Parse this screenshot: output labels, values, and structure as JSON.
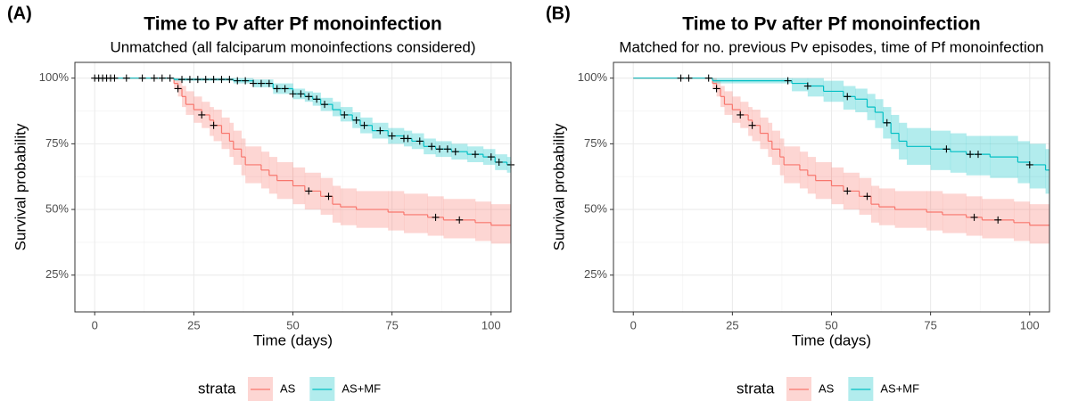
{
  "chart_data": [
    {
      "type": "survival",
      "panel_label": "(A)",
      "title": "Time to Pv after Pf monoinfection",
      "subtitle": "Unmatched (all falciparum monoinfections considered)",
      "x_label": "Time (days)",
      "y_label": "Survival probability",
      "xlim": [
        -5,
        105
      ],
      "ylim": [
        11,
        106
      ],
      "xticks": [
        0,
        25,
        50,
        75,
        100
      ],
      "yticks": [
        {
          "value": 25,
          "label": "25%"
        },
        {
          "value": 50,
          "label": "50%"
        },
        {
          "value": 75,
          "label": "75%"
        },
        {
          "value": 100,
          "label": "100%"
        }
      ],
      "grid": true,
      "legend_title": "strata",
      "series": [
        {
          "name": "AS",
          "color": "#F8766D",
          "x": [
            0,
            20,
            21,
            22,
            23,
            25,
            27,
            29,
            30,
            32,
            34,
            35,
            37,
            38,
            42,
            44,
            46,
            50,
            53,
            57,
            60,
            62,
            66,
            74,
            78,
            84,
            88,
            96,
            100,
            105
          ],
          "values": [
            100,
            98,
            96,
            93,
            90,
            88,
            86,
            84,
            82,
            79,
            76,
            73,
            70,
            67,
            65,
            63,
            61,
            59,
            57,
            55,
            52,
            51,
            50,
            49,
            48,
            47,
            46,
            45,
            44,
            44
          ],
          "lower": [
            100,
            96,
            93,
            89,
            86,
            83,
            81,
            78,
            76,
            73,
            70,
            67,
            63,
            60,
            58,
            56,
            54,
            52,
            50,
            48,
            45,
            44,
            43,
            42,
            41,
            40,
            39,
            38,
            37,
            37
          ],
          "upper": [
            100,
            100,
            99,
            97,
            95,
            93,
            91,
            89,
            88,
            85,
            83,
            80,
            77,
            74,
            72,
            70,
            68,
            66,
            64,
            62,
            59,
            58,
            57,
            57,
            56,
            55,
            54,
            53,
            52,
            52
          ],
          "censor_x": [
            21,
            27,
            30,
            54,
            59,
            86,
            92
          ],
          "censor_y": [
            96,
            86,
            82,
            57,
            55,
            47,
            46
          ]
        },
        {
          "name": "AS+MF",
          "color": "#00BFC4",
          "x": [
            0,
            20,
            35,
            40,
            45,
            50,
            53,
            55,
            57,
            60,
            62,
            65,
            67,
            70,
            74,
            78,
            80,
            83,
            86,
            90,
            94,
            98,
            101,
            104,
            105
          ],
          "values": [
            100,
            99.5,
            99,
            98,
            96,
            94,
            93,
            92,
            90,
            88,
            86,
            84,
            82,
            80,
            78,
            77,
            76,
            74,
            73,
            72,
            71,
            70,
            68,
            67,
            67
          ],
          "lower": [
            100,
            99,
            98,
            96.5,
            94,
            92,
            91,
            89.5,
            87.5,
            85.5,
            83.5,
            81,
            79,
            77,
            75,
            74,
            73,
            71,
            70,
            69,
            68,
            67,
            65,
            64,
            64
          ],
          "upper": [
            100,
            100,
            100,
            99.5,
            98,
            96,
            95,
            94.5,
            92.5,
            91,
            89,
            87,
            85,
            83,
            81,
            80,
            79,
            77,
            76,
            75,
            74,
            73,
            71,
            70,
            70
          ],
          "censor_x": [
            0,
            1,
            2,
            3,
            4,
            5,
            8,
            12,
            15,
            17,
            19,
            22,
            24,
            26,
            28,
            30,
            32,
            34,
            36,
            38,
            40,
            42,
            44,
            46,
            48,
            50,
            52,
            54,
            56,
            58,
            63,
            66,
            68,
            72,
            75,
            78,
            79,
            82,
            85,
            87,
            89,
            91,
            96,
            100,
            102,
            105
          ],
          "censor_y": [
            100,
            100,
            100,
            100,
            100,
            100,
            100,
            100,
            100,
            100,
            100,
            99.5,
            99.5,
            99.5,
            99.5,
            99.5,
            99.5,
            99.5,
            99,
            99,
            98,
            98,
            98,
            96,
            96,
            94,
            94,
            93,
            92,
            90,
            86,
            84,
            82,
            80,
            78,
            77,
            77,
            76,
            74,
            73,
            73,
            72,
            71,
            70,
            68,
            67
          ]
        }
      ]
    },
    {
      "type": "survival",
      "panel_label": "(B)",
      "title": "Time to Pv after Pf monoinfection",
      "subtitle": "Matched for no. previous Pv episodes, time of Pf monoinfection",
      "x_label": "Time (days)",
      "y_label": "Survival probability",
      "xlim": [
        -5,
        105
      ],
      "ylim": [
        11,
        106
      ],
      "xticks": [
        0,
        25,
        50,
        75,
        100
      ],
      "yticks": [
        {
          "value": 25,
          "label": "25%"
        },
        {
          "value": 50,
          "label": "50%"
        },
        {
          "value": 75,
          "label": "75%"
        },
        {
          "value": 100,
          "label": "100%"
        }
      ],
      "grid": true,
      "legend_title": "strata",
      "series": [
        {
          "name": "AS",
          "color": "#F8766D",
          "x": [
            0,
            20,
            21,
            22,
            23,
            25,
            27,
            29,
            30,
            32,
            34,
            35,
            37,
            38,
            42,
            44,
            46,
            50,
            53,
            57,
            60,
            62,
            66,
            74,
            78,
            84,
            88,
            96,
            100,
            105
          ],
          "values": [
            100,
            98,
            96,
            93,
            90,
            88,
            86,
            84,
            82,
            79,
            76,
            73,
            70,
            67,
            65,
            63,
            61,
            59,
            57,
            55,
            52,
            51,
            50,
            49,
            48,
            47,
            46,
            45,
            44,
            44
          ],
          "lower": [
            100,
            96,
            93,
            89,
            86,
            83,
            81,
            78,
            76,
            73,
            70,
            67,
            63,
            60,
            58,
            56,
            54,
            52,
            50,
            48,
            45,
            44,
            43,
            42,
            41,
            40,
            39,
            38,
            37,
            37
          ],
          "upper": [
            100,
            100,
            99,
            97,
            95,
            93,
            91,
            89,
            88,
            85,
            83,
            80,
            77,
            74,
            72,
            70,
            68,
            66,
            64,
            62,
            59,
            58,
            57,
            57,
            56,
            55,
            54,
            53,
            52,
            52
          ],
          "censor_x": [
            21,
            27,
            30,
            54,
            59,
            86,
            92
          ],
          "censor_y": [
            96,
            86,
            82,
            57,
            55,
            47,
            46
          ]
        },
        {
          "name": "AS+MF",
          "color": "#00BFC4",
          "x": [
            0,
            20,
            40,
            44,
            48,
            53,
            56,
            59,
            61,
            63,
            65,
            67,
            69,
            75,
            80,
            84,
            90,
            97,
            100,
            104,
            105
          ],
          "values": [
            100,
            99,
            98,
            97,
            95,
            93,
            92,
            89,
            87,
            83,
            79,
            76,
            74,
            73,
            72,
            71,
            70,
            68,
            67,
            65,
            65
          ],
          "lower": [
            100,
            98,
            95,
            93,
            91,
            88,
            87,
            84,
            81,
            77,
            73,
            69,
            67,
            65,
            64,
            63,
            62,
            60,
            58,
            56,
            56
          ],
          "upper": [
            100,
            100,
            100,
            100,
            99,
            97,
            96,
            94,
            92,
            89,
            86,
            83,
            81,
            80,
            79,
            78,
            78,
            76,
            75,
            73,
            73
          ],
          "censor_x": [
            12,
            14,
            19,
            39,
            44,
            54,
            64,
            79,
            85,
            87,
            100
          ],
          "censor_y": [
            100,
            100,
            100,
            99,
            97,
            93,
            83,
            73,
            71,
            71,
            67
          ]
        }
      ]
    }
  ]
}
